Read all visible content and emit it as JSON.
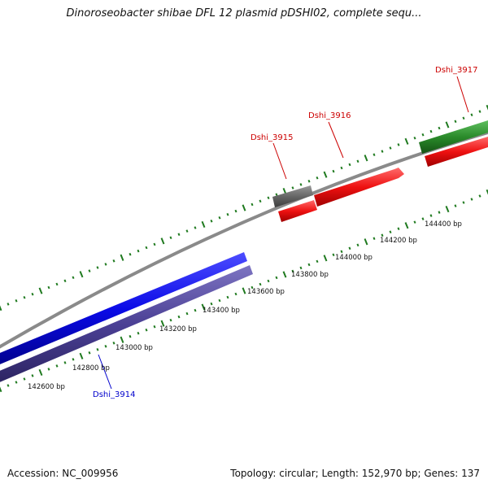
{
  "title": "Dinoroseobacter shibae DFL 12 plasmid pDSHI02, complete sequ...",
  "footer": {
    "accession": "Accession: NC_009956",
    "summary": "Topology: circular; Length: 152,970 bp; Genes: 137"
  },
  "scale_ticks": [
    "142600 bp",
    "142800 bp",
    "143000 bp",
    "143200 bp",
    "143400 bp",
    "143600 bp",
    "143800 bp",
    "144000 bp",
    "144200 bp",
    "144400 bp"
  ],
  "genes": [
    {
      "label": "Dshi_3914",
      "color": "#0000cc"
    },
    {
      "label": "Dshi_3915",
      "color": "#cc0000"
    },
    {
      "label": "Dshi_3916",
      "color": "#cc0000"
    },
    {
      "label": "Dshi_3917",
      "color": "#cc0000"
    }
  ],
  "colors": {
    "blue_feature": "#0a0ae6",
    "purple_feature": "#4a3f94",
    "red_feature": "#ee1111",
    "green_feature": "#2a8a2a",
    "gray_feature": "#666666",
    "backbone": "#8a8a8a",
    "tick_green": "#1f7a1f"
  }
}
